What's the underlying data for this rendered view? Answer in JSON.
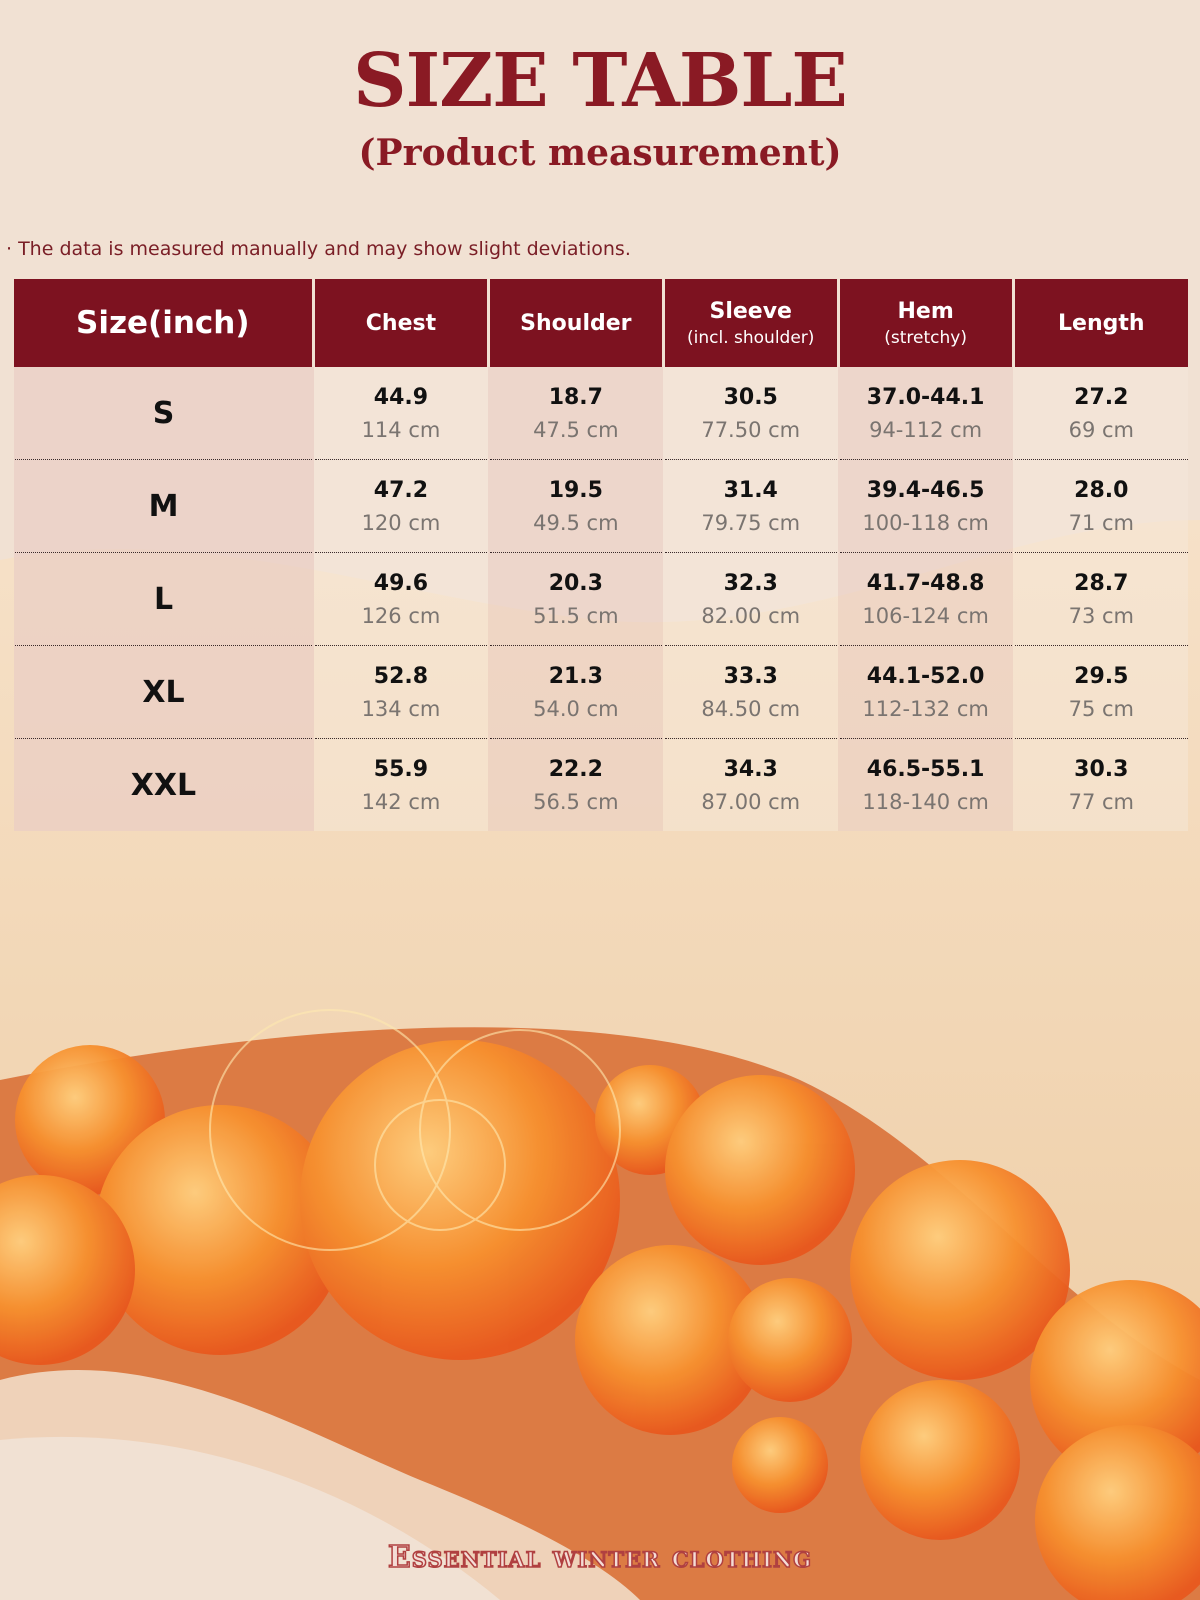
{
  "title": "SIZE TABLE",
  "subtitle": "(Product measurement)",
  "note": "· The data is measured manually and may show slight deviations.",
  "table": {
    "headers": [
      {
        "label": "Size(inch)",
        "sub": ""
      },
      {
        "label": "Chest",
        "sub": ""
      },
      {
        "label": "Shoulder",
        "sub": ""
      },
      {
        "label": "Sleeve",
        "sub": "(incl. shoulder)"
      },
      {
        "label": "Hem",
        "sub": "(stretchy)"
      },
      {
        "label": "Length",
        "sub": ""
      }
    ],
    "rows": [
      {
        "size": "S",
        "cells": [
          {
            "inch": "44.9",
            "cm": "114 cm"
          },
          {
            "inch": "18.7",
            "cm": "47.5 cm"
          },
          {
            "inch": "30.5",
            "cm": "77.50 cm"
          },
          {
            "inch": "37.0-44.1",
            "cm": "94-112 cm"
          },
          {
            "inch": "27.2",
            "cm": "69 cm"
          }
        ]
      },
      {
        "size": "M",
        "cells": [
          {
            "inch": "47.2",
            "cm": "120 cm"
          },
          {
            "inch": "19.5",
            "cm": "49.5 cm"
          },
          {
            "inch": "31.4",
            "cm": "79.75 cm"
          },
          {
            "inch": "39.4-46.5",
            "cm": "100-118 cm"
          },
          {
            "inch": "28.0",
            "cm": "71 cm"
          }
        ]
      },
      {
        "size": "L",
        "cells": [
          {
            "inch": "49.6",
            "cm": "126 cm"
          },
          {
            "inch": "20.3",
            "cm": "51.5 cm"
          },
          {
            "inch": "32.3",
            "cm": "82.00 cm"
          },
          {
            "inch": "41.7-48.8",
            "cm": "106-124 cm"
          },
          {
            "inch": "28.7",
            "cm": "73 cm"
          }
        ]
      },
      {
        "size": "XL",
        "cells": [
          {
            "inch": "52.8",
            "cm": "134 cm"
          },
          {
            "inch": "21.3",
            "cm": "54.0 cm"
          },
          {
            "inch": "33.3",
            "cm": "84.50 cm"
          },
          {
            "inch": "44.1-52.0",
            "cm": "112-132 cm"
          },
          {
            "inch": "29.5",
            "cm": "75 cm"
          }
        ]
      },
      {
        "size": "XXL",
        "cells": [
          {
            "inch": "55.9",
            "cm": "142 cm"
          },
          {
            "inch": "22.2",
            "cm": "56.5 cm"
          },
          {
            "inch": "34.3",
            "cm": "87.00 cm"
          },
          {
            "inch": "46.5-55.1",
            "cm": "118-140 cm"
          },
          {
            "inch": "30.3",
            "cm": "77 cm"
          }
        ]
      }
    ]
  },
  "footer": "Essential winter clothing",
  "colors": {
    "accent": "#7d1220",
    "background": "#f1e1d3",
    "fleece": "#f3d7b4",
    "bubble": "#f27a2a"
  }
}
